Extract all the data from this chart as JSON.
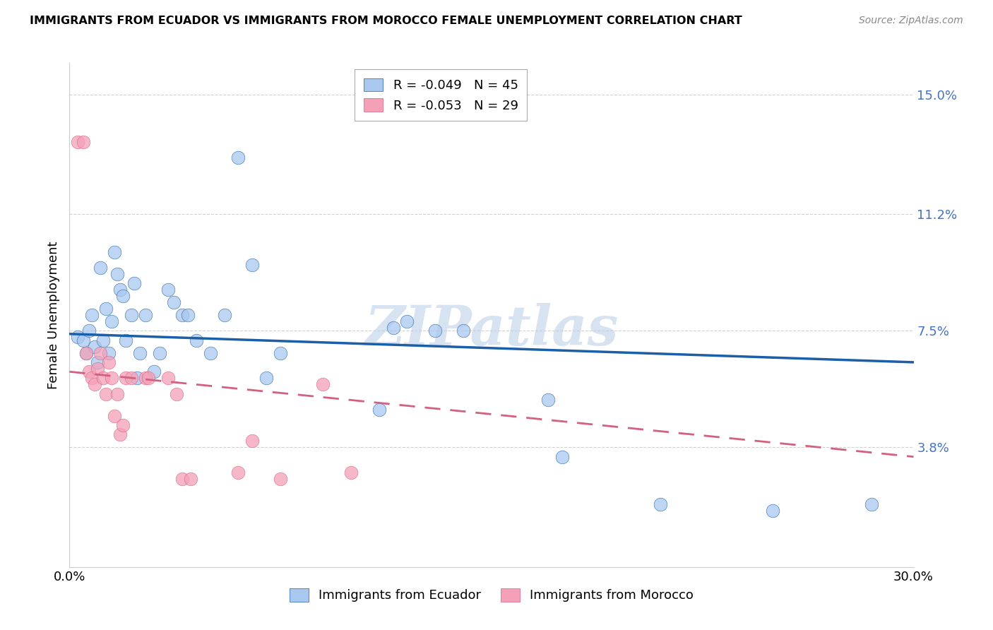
{
  "title": "IMMIGRANTS FROM ECUADOR VS IMMIGRANTS FROM MOROCCO FEMALE UNEMPLOYMENT CORRELATION CHART",
  "source": "Source: ZipAtlas.com",
  "ylabel": "Female Unemployment",
  "legend_label_ecuador": "Immigrants from Ecuador",
  "legend_label_morocco": "Immigrants from Morocco",
  "r_ecuador": "-0.049",
  "n_ecuador": "45",
  "r_morocco": "-0.053",
  "n_morocco": "29",
  "xlim": [
    0.0,
    0.3
  ],
  "ylim": [
    0.0,
    0.16
  ],
  "yticks": [
    0.038,
    0.075,
    0.112,
    0.15
  ],
  "ytick_labels": [
    "3.8%",
    "7.5%",
    "11.2%",
    "15.0%"
  ],
  "xticks": [
    0.0,
    0.05,
    0.1,
    0.15,
    0.2,
    0.25,
    0.3
  ],
  "xtick_labels": [
    "0.0%",
    "",
    "",
    "",
    "",
    "",
    "30.0%"
  ],
  "color_ecuador": "#A8C8F0",
  "color_morocco": "#F4A0B8",
  "line_color_ecuador": "#1A5FA8",
  "line_color_morocco": "#D46080",
  "watermark": "ZIPatlas",
  "ecuador_points": [
    [
      0.003,
      0.073
    ],
    [
      0.005,
      0.072
    ],
    [
      0.006,
      0.068
    ],
    [
      0.007,
      0.075
    ],
    [
      0.008,
      0.08
    ],
    [
      0.009,
      0.07
    ],
    [
      0.01,
      0.065
    ],
    [
      0.011,
      0.095
    ],
    [
      0.012,
      0.072
    ],
    [
      0.013,
      0.082
    ],
    [
      0.014,
      0.068
    ],
    [
      0.015,
      0.078
    ],
    [
      0.016,
      0.1
    ],
    [
      0.017,
      0.093
    ],
    [
      0.018,
      0.088
    ],
    [
      0.019,
      0.086
    ],
    [
      0.02,
      0.072
    ],
    [
      0.022,
      0.08
    ],
    [
      0.023,
      0.09
    ],
    [
      0.024,
      0.06
    ],
    [
      0.025,
      0.068
    ],
    [
      0.027,
      0.08
    ],
    [
      0.03,
      0.062
    ],
    [
      0.032,
      0.068
    ],
    [
      0.035,
      0.088
    ],
    [
      0.037,
      0.084
    ],
    [
      0.04,
      0.08
    ],
    [
      0.042,
      0.08
    ],
    [
      0.045,
      0.072
    ],
    [
      0.05,
      0.068
    ],
    [
      0.055,
      0.08
    ],
    [
      0.06,
      0.13
    ],
    [
      0.065,
      0.096
    ],
    [
      0.07,
      0.06
    ],
    [
      0.075,
      0.068
    ],
    [
      0.11,
      0.05
    ],
    [
      0.115,
      0.076
    ],
    [
      0.12,
      0.078
    ],
    [
      0.13,
      0.075
    ],
    [
      0.14,
      0.075
    ],
    [
      0.17,
      0.053
    ],
    [
      0.175,
      0.035
    ],
    [
      0.21,
      0.02
    ],
    [
      0.25,
      0.018
    ],
    [
      0.285,
      0.02
    ]
  ],
  "morocco_points": [
    [
      0.003,
      0.135
    ],
    [
      0.005,
      0.135
    ],
    [
      0.006,
      0.068
    ],
    [
      0.007,
      0.062
    ],
    [
      0.008,
      0.06
    ],
    [
      0.009,
      0.058
    ],
    [
      0.01,
      0.063
    ],
    [
      0.011,
      0.068
    ],
    [
      0.012,
      0.06
    ],
    [
      0.013,
      0.055
    ],
    [
      0.014,
      0.065
    ],
    [
      0.015,
      0.06
    ],
    [
      0.016,
      0.048
    ],
    [
      0.017,
      0.055
    ],
    [
      0.018,
      0.042
    ],
    [
      0.019,
      0.045
    ],
    [
      0.02,
      0.06
    ],
    [
      0.022,
      0.06
    ],
    [
      0.027,
      0.06
    ],
    [
      0.028,
      0.06
    ],
    [
      0.035,
      0.06
    ],
    [
      0.038,
      0.055
    ],
    [
      0.04,
      0.028
    ],
    [
      0.043,
      0.028
    ],
    [
      0.06,
      0.03
    ],
    [
      0.065,
      0.04
    ],
    [
      0.075,
      0.028
    ],
    [
      0.09,
      0.058
    ],
    [
      0.1,
      0.03
    ]
  ]
}
